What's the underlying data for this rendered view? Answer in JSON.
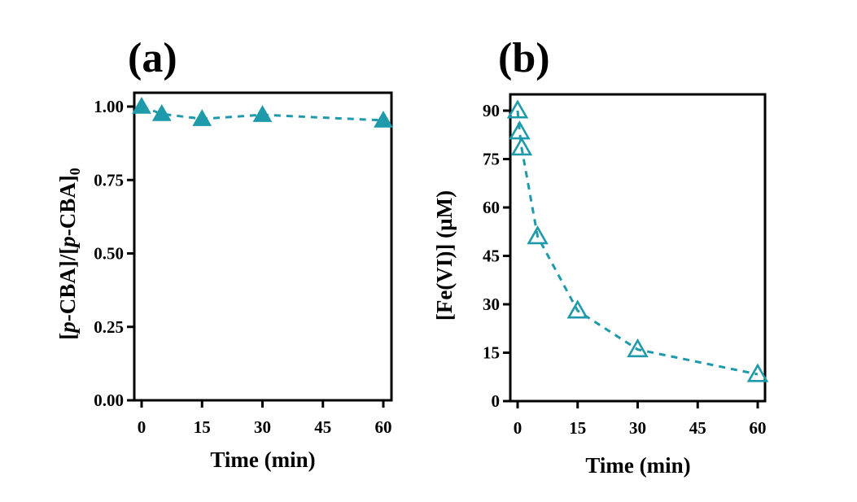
{
  "chart_data": [
    {
      "type": "line",
      "panel_label": "(a)",
      "title": "",
      "xlabel": "Time (min)",
      "ylabel_parts": {
        "open": "[",
        "italic1": "p",
        "mid": "-CBA]/[",
        "italic2": "p",
        "close": "-CBA]",
        "sub": "0"
      },
      "ylabel": "[p-CBA]/[p-CBA]0",
      "xlim": [
        -1.5,
        62
      ],
      "ylim": [
        0,
        1.05
      ],
      "xticks": [
        0,
        15,
        30,
        45,
        60
      ],
      "xtick_labels": [
        "0",
        "15",
        "30",
        "45",
        "60"
      ],
      "yticks": [
        0,
        0.25,
        0.5,
        0.75,
        1.0
      ],
      "ytick_labels": [
        "0.00",
        "0.25",
        "0.50",
        "0.75",
        "1.00"
      ],
      "grid": false,
      "legend": "none",
      "series": [
        {
          "name": "p-CBA",
          "marker": "filled-triangle",
          "line": "dashed",
          "color": "#1f9aab",
          "x": [
            0,
            5,
            15,
            30,
            60
          ],
          "y": [
            1.0,
            0.975,
            0.958,
            0.972,
            0.953
          ]
        }
      ]
    },
    {
      "type": "line",
      "panel_label": "(b)",
      "title": "",
      "xlabel": "Time (min)",
      "ylabel": "[Fe(VI)] (µM)",
      "xlim": [
        -2,
        62
      ],
      "ylim": [
        0,
        96
      ],
      "xticks": [
        0,
        15,
        30,
        45,
        60
      ],
      "xtick_labels": [
        "0",
        "15",
        "30",
        "45",
        "60"
      ],
      "yticks": [
        0,
        15,
        30,
        45,
        60,
        75,
        90
      ],
      "ytick_labels": [
        "0",
        "15",
        "30",
        "45",
        "60",
        "75",
        "90"
      ],
      "grid": false,
      "legend": "none",
      "series": [
        {
          "name": "Fe(VI)",
          "marker": "open-triangle",
          "line": "dashed",
          "color": "#1f9aab",
          "x": [
            0,
            0.5,
            1,
            5,
            15,
            30,
            60
          ],
          "y": [
            90,
            83.5,
            78.5,
            51,
            28,
            16,
            8.3
          ]
        }
      ]
    }
  ]
}
